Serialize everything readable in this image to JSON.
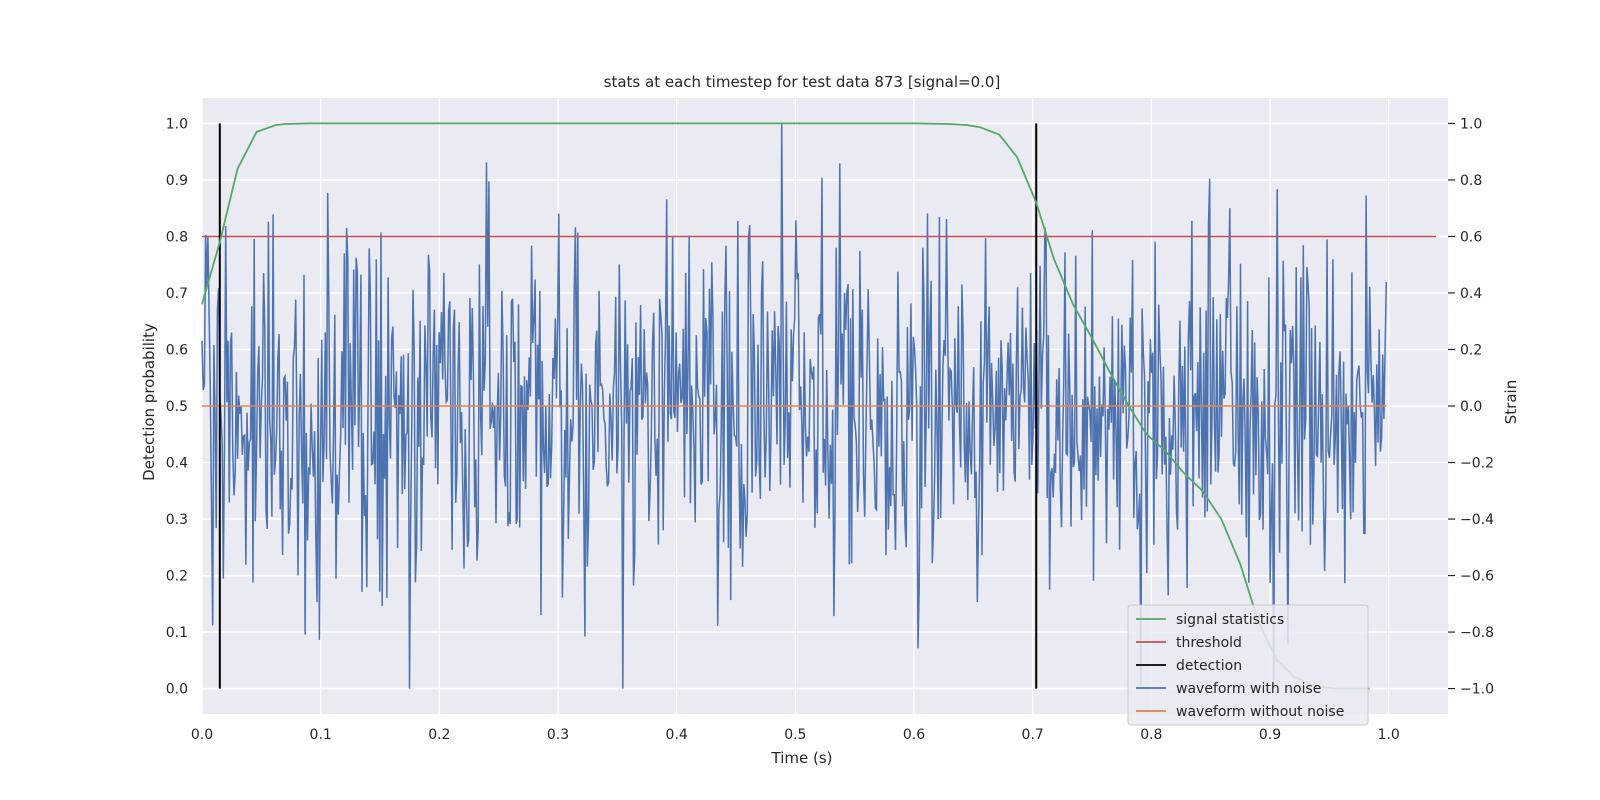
{
  "chart_data": {
    "type": "line",
    "title": "stats at each timestep for test data 873 [signal=0.0]",
    "xlabel": "Time (s)",
    "ylabel_left": "Detection probability",
    "ylabel_right": "Strain",
    "xlim": [
      0.0,
      1.05
    ],
    "ylim_left": [
      -0.045,
      1.045
    ],
    "ylim_right": [
      -1.09,
      1.09
    ],
    "x_ticks": [
      "0.0",
      "0.1",
      "0.2",
      "0.3",
      "0.4",
      "0.5",
      "0.6",
      "0.7",
      "0.8",
      "0.9",
      "1.0"
    ],
    "y_ticks_left": [
      "0.0",
      "0.1",
      "0.2",
      "0.3",
      "0.4",
      "0.5",
      "0.6",
      "0.7",
      "0.8",
      "0.9",
      "1.0"
    ],
    "y_ticks_right": [
      "−1.0",
      "−0.8",
      "−0.6",
      "−0.4",
      "−0.2",
      "0.0",
      "0.2",
      "0.4",
      "0.6",
      "0.8",
      "1.0"
    ],
    "grid": true,
    "legend_position": "bottom-right",
    "colors": {
      "signal_statistics": "#55a868",
      "threshold": "#c44e52",
      "detection": "#000000",
      "waveform_with_noise": "#4c72b0",
      "waveform_without_noise": "#dd8452",
      "plot_background": "#eaeaf2",
      "grid": "#ffffff"
    },
    "series": [
      {
        "name": "signal statistics",
        "axis": "left",
        "x": [
          0.0,
          0.015,
          0.03,
          0.046,
          0.062,
          0.07,
          0.09,
          0.12,
          0.2,
          0.3,
          0.4,
          0.5,
          0.6,
          0.63,
          0.645,
          0.656,
          0.672,
          0.687,
          0.703,
          0.718,
          0.734,
          0.75,
          0.765,
          0.781,
          0.796,
          0.812,
          0.828,
          0.843,
          0.859,
          0.875,
          0.89,
          0.906,
          0.921,
          0.937,
          0.953,
          0.968,
          0.984
        ],
        "y": [
          0.68,
          0.79,
          0.92,
          0.985,
          0.997,
          0.999,
          1.0,
          1.0,
          1.0,
          1.0,
          1.0,
          1.0,
          1.0,
          0.999,
          0.997,
          0.993,
          0.98,
          0.94,
          0.86,
          0.76,
          0.68,
          0.62,
          0.56,
          0.5,
          0.45,
          0.42,
          0.38,
          0.35,
          0.3,
          0.22,
          0.12,
          0.05,
          0.02,
          0.005,
          0.0,
          0.0,
          0.0
        ]
      },
      {
        "name": "threshold",
        "axis": "left",
        "x": [
          0.0,
          1.04
        ],
        "y": [
          0.8,
          0.8
        ]
      },
      {
        "name": "detection",
        "axis": "left",
        "lines_x": [
          0.015,
          0.703
        ],
        "y_range": [
          0.0,
          1.0
        ]
      },
      {
        "name": "waveform with noise",
        "axis": "right",
        "x_range": [
          0.0,
          0.998
        ],
        "num_points": 1000,
        "approx_range": [
          -1.0,
          1.0
        ],
        "approx_std": 0.33
      },
      {
        "name": "waveform without noise",
        "axis": "right",
        "x": [
          0.0,
          0.998
        ],
        "y": [
          0.0,
          0.0
        ]
      }
    ]
  }
}
